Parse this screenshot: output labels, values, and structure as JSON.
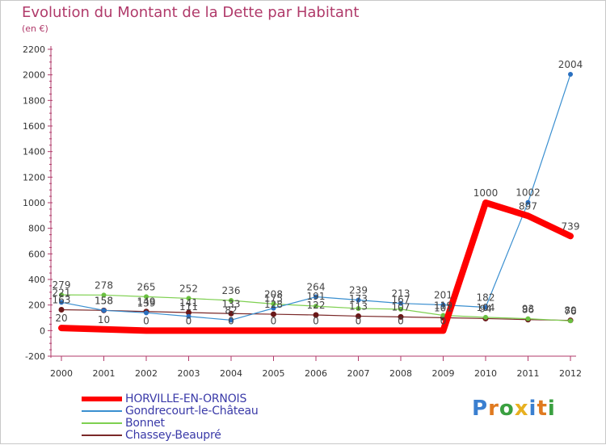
{
  "title": "Evolution du Montant de la Dette par Habitant",
  "subtitle": "(en €)",
  "logo": "Proxiti",
  "chart_data": {
    "type": "line",
    "x": [
      "2000",
      "2001",
      "2002",
      "2003",
      "2004",
      "2005",
      "2006",
      "2007",
      "2008",
      "2009",
      "2010",
      "2011",
      "2012"
    ],
    "ylim": [
      -200,
      2200
    ],
    "yticks": [
      -200,
      0,
      200,
      400,
      600,
      800,
      1000,
      1200,
      1400,
      1600,
      1800,
      2000,
      2200
    ],
    "grid": false,
    "legend_position": "bottom",
    "series": [
      {
        "name": "HORVILLE-EN-ORNOIS",
        "color": "#ff0000",
        "values": [
          20,
          10,
          0,
          0,
          0,
          0,
          0,
          0,
          0,
          0,
          1000,
          897,
          739
        ]
      },
      {
        "name": "Gondrecourt-le-Château",
        "color": "#3a8fd0",
        "values": [
          221,
          158,
          139,
          111,
          82,
          175,
          264,
          239,
          213,
          201,
          182,
          1002,
          2004
        ]
      },
      {
        "name": "Bonnet",
        "color": "#7ed050",
        "values": [
          279,
          278,
          265,
          252,
          236,
          208,
          191,
          173,
          167,
          119,
          104,
          93,
          76
        ]
      },
      {
        "name": "Chassey-Beaupré",
        "color": "#7a2828",
        "values": [
          163,
          158,
          149,
          141,
          133,
          128,
          122,
          113,
          107,
          101,
          94,
          86,
          80
        ]
      }
    ],
    "labels": {
      "HORVILLE-EN-ORNOIS": [
        "20",
        "10",
        "0",
        "0",
        "0",
        "0",
        "0",
        "0",
        "0",
        "0",
        "1000",
        "897",
        "739"
      ],
      "Gondrecourt-le-Château": [
        "221",
        "158",
        "139",
        "111",
        "82",
        "175",
        "264",
        "239",
        "213",
        "201",
        "182",
        "1002",
        "2004"
      ],
      "Bonnet": [
        "279",
        "278",
        "265",
        "252",
        "236",
        "208",
        "191",
        "173",
        "167",
        "119",
        "104",
        "93",
        "76"
      ],
      "Chassey-Beaupré": [
        "163",
        "158",
        "149",
        "141",
        "133",
        "128",
        "122",
        "113",
        "107",
        "101",
        "94",
        "86",
        "80"
      ]
    }
  }
}
